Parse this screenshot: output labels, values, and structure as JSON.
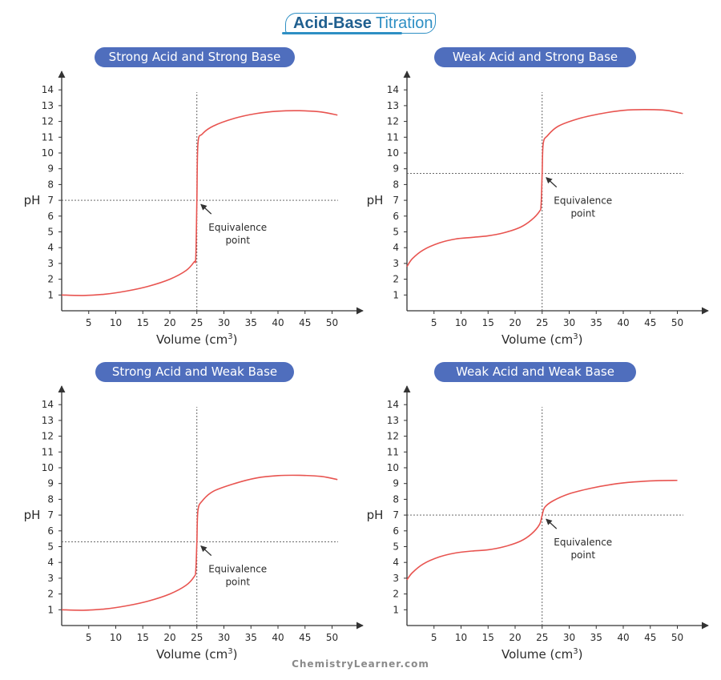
{
  "header": {
    "title_bold": "Acid-Base",
    "title_light": "Titration",
    "brand_color": "#2e8fc4"
  },
  "watermark": "ChemistryLearner.com",
  "colors": {
    "curve": "#e85450",
    "axis": "#333333",
    "guide": "#555555",
    "pill": "#4f6ebd"
  },
  "chart_data": [
    {
      "type": "line",
      "title": "Strong Acid and Strong Base",
      "xlabel": "Volume (cm",
      "xlabel_sup": "3",
      "xlabel_close": ")",
      "ylabel": "pH",
      "xlim": [
        0,
        52
      ],
      "ylim": [
        0,
        14.5
      ],
      "xticks": [
        5,
        10,
        15,
        20,
        25,
        30,
        35,
        40,
        45,
        50
      ],
      "yticks": [
        1,
        2,
        3,
        4,
        5,
        6,
        7,
        8,
        9,
        10,
        11,
        12,
        13,
        14
      ],
      "equivalence": {
        "x": 25,
        "y": 7
      },
      "annotation": [
        "Equivalence",
        "point"
      ],
      "series": [
        {
          "name": "pH curve",
          "points": [
            [
              0,
              1.0
            ],
            [
              4,
              0.97
            ],
            [
              8,
              1.05
            ],
            [
              12,
              1.25
            ],
            [
              16,
              1.55
            ],
            [
              20,
              2.0
            ],
            [
              23,
              2.55
            ],
            [
              24.5,
              3.1
            ],
            [
              24.8,
              3.4
            ],
            [
              25,
              7.0
            ],
            [
              25.2,
              10.6
            ],
            [
              26,
              11.2
            ],
            [
              28,
              11.7
            ],
            [
              32,
              12.2
            ],
            [
              36,
              12.5
            ],
            [
              40,
              12.65
            ],
            [
              44,
              12.68
            ],
            [
              48,
              12.6
            ],
            [
              51,
              12.4
            ]
          ]
        }
      ]
    },
    {
      "type": "line",
      "title": "Weak Acid and Strong Base",
      "xlabel": "Volume (cm",
      "xlabel_sup": "3",
      "xlabel_close": ")",
      "ylabel": "pH",
      "xlim": [
        0,
        52
      ],
      "ylim": [
        0,
        14.5
      ],
      "xticks": [
        5,
        10,
        15,
        20,
        25,
        30,
        35,
        40,
        45,
        50
      ],
      "yticks": [
        1,
        2,
        3,
        4,
        5,
        6,
        7,
        8,
        9,
        10,
        11,
        12,
        13,
        14
      ],
      "equivalence": {
        "x": 25,
        "y": 8.7
      },
      "annotation": [
        "Equivalence",
        "point"
      ],
      "series": [
        {
          "name": "pH curve",
          "points": [
            [
              0,
              2.8
            ],
            [
              1,
              3.3
            ],
            [
              3,
              3.85
            ],
            [
              6,
              4.3
            ],
            [
              9,
              4.55
            ],
            [
              12,
              4.65
            ],
            [
              15,
              4.75
            ],
            [
              18,
              4.95
            ],
            [
              21,
              5.3
            ],
            [
              23,
              5.75
            ],
            [
              24.5,
              6.3
            ],
            [
              24.8,
              6.7
            ],
            [
              25,
              8.7
            ],
            [
              25.2,
              10.6
            ],
            [
              26,
              11.1
            ],
            [
              28,
              11.7
            ],
            [
              32,
              12.2
            ],
            [
              36,
              12.5
            ],
            [
              40,
              12.7
            ],
            [
              44,
              12.75
            ],
            [
              48,
              12.7
            ],
            [
              51,
              12.5
            ]
          ]
        }
      ]
    },
    {
      "type": "line",
      "title": "Strong Acid and Weak Base",
      "xlabel": "Volume (cm",
      "xlabel_sup": "3",
      "xlabel_close": ")",
      "ylabel": "pH",
      "xlim": [
        0,
        52
      ],
      "ylim": [
        0,
        14.5
      ],
      "xticks": [
        5,
        10,
        15,
        20,
        25,
        30,
        35,
        40,
        45,
        50
      ],
      "yticks": [
        1,
        2,
        3,
        4,
        5,
        6,
        7,
        8,
        9,
        10,
        11,
        12,
        13,
        14
      ],
      "equivalence": {
        "x": 25,
        "y": 5.3
      },
      "annotation": [
        "Equivalence",
        "point"
      ],
      "series": [
        {
          "name": "pH curve",
          "points": [
            [
              0,
              1.0
            ],
            [
              4,
              0.97
            ],
            [
              8,
              1.05
            ],
            [
              12,
              1.25
            ],
            [
              16,
              1.55
            ],
            [
              20,
              2.0
            ],
            [
              23,
              2.55
            ],
            [
              24.5,
              3.1
            ],
            [
              24.8,
              3.5
            ],
            [
              25,
              5.3
            ],
            [
              25.2,
              7.3
            ],
            [
              26,
              7.9
            ],
            [
              28,
              8.5
            ],
            [
              32,
              9.0
            ],
            [
              36,
              9.35
            ],
            [
              40,
              9.5
            ],
            [
              44,
              9.52
            ],
            [
              48,
              9.45
            ],
            [
              51,
              9.25
            ]
          ]
        }
      ]
    },
    {
      "type": "line",
      "title": "Weak Acid and Weak Base",
      "xlabel": "Volume (cm",
      "xlabel_sup": "3",
      "xlabel_close": ")",
      "ylabel": "pH",
      "xlim": [
        0,
        52
      ],
      "ylim": [
        0,
        14.5
      ],
      "xticks": [
        5,
        10,
        15,
        20,
        25,
        30,
        35,
        40,
        45,
        50
      ],
      "yticks": [
        1,
        2,
        3,
        4,
        5,
        6,
        7,
        8,
        9,
        10,
        11,
        12,
        13,
        14
      ],
      "equivalence": {
        "x": 25,
        "y": 7
      },
      "annotation": [
        "Equivalence",
        "point"
      ],
      "series": [
        {
          "name": "pH curve",
          "points": [
            [
              0,
              2.9
            ],
            [
              1,
              3.35
            ],
            [
              3,
              3.9
            ],
            [
              6,
              4.35
            ],
            [
              9,
              4.6
            ],
            [
              12,
              4.72
            ],
            [
              15,
              4.8
            ],
            [
              18,
              5.0
            ],
            [
              21,
              5.35
            ],
            [
              23,
              5.8
            ],
            [
              24.5,
              6.4
            ],
            [
              25,
              7.0
            ],
            [
              25.5,
              7.5
            ],
            [
              27,
              7.9
            ],
            [
              30,
              8.35
            ],
            [
              34,
              8.7
            ],
            [
              38,
              8.95
            ],
            [
              42,
              9.1
            ],
            [
              46,
              9.18
            ],
            [
              50,
              9.2
            ]
          ]
        }
      ]
    }
  ]
}
